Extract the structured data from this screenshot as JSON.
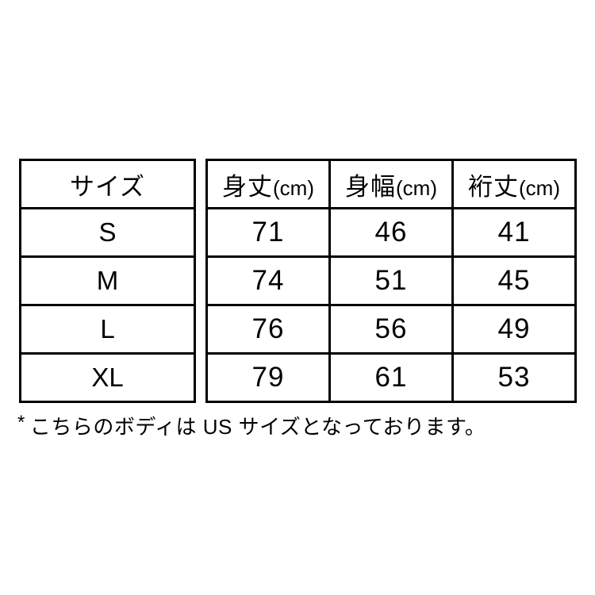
{
  "table": {
    "size_header": "サイズ",
    "measure_headers": [
      {
        "kanji": "身丈",
        "unit": "(cm)"
      },
      {
        "kanji": "身幅",
        "unit": "(cm)"
      },
      {
        "kanji": "裄丈",
        "unit": "(cm)"
      }
    ],
    "rows": [
      {
        "size": "S",
        "values": [
          "71",
          "46",
          "41"
        ]
      },
      {
        "size": "M",
        "values": [
          "74",
          "51",
          "45"
        ]
      },
      {
        "size": "L",
        "values": [
          "76",
          "56",
          "49"
        ]
      },
      {
        "size": "XL",
        "values": [
          "79",
          "61",
          "53"
        ]
      }
    ]
  },
  "footnote": {
    "marker": "*",
    "text": "こちらのボディは US サイズとなっております。"
  },
  "colors": {
    "border": "#000000",
    "background": "#ffffff",
    "text": "#000000"
  },
  "chart_data": {
    "type": "table",
    "title": "",
    "columns": [
      "サイズ",
      "身丈(cm)",
      "身幅(cm)",
      "裄丈(cm)"
    ],
    "rows": [
      [
        "S",
        71,
        46,
        41
      ],
      [
        "M",
        74,
        51,
        45
      ],
      [
        "L",
        76,
        56,
        49
      ],
      [
        "XL",
        79,
        61,
        53
      ]
    ],
    "footnote": "* こちらのボディは US サイズとなっております。",
    "layout": "first column visually separated from measurement columns by white gap; black 3px grid borders on white"
  }
}
